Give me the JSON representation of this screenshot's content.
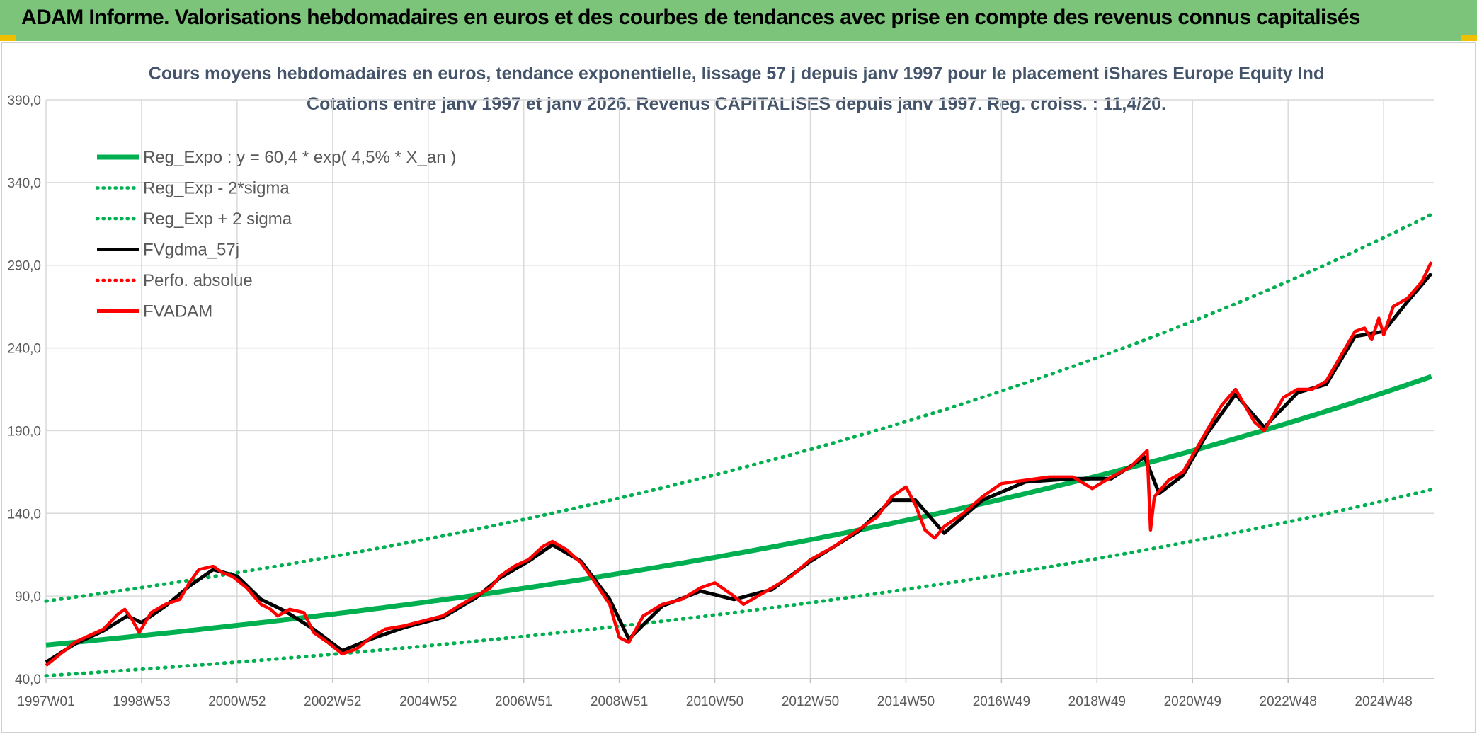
{
  "header": {
    "title": "ADAM Informe. Valorisations hebdomadaires en euros et des courbes de tendances avec prise en compte des revenus connus capitalisés"
  },
  "chart_data": {
    "type": "line",
    "title_line1": "Cours moyens hebdomadaires en euros, tendance exponentielle, lissage 57 j depuis janv 1997 pour le placement iShares Europe Equity Ind",
    "title_line2": "Cotations entre janv 1997 et janv 2026. Revenus CAPITALISES depuis janv 1997. Reg. croiss. : 11,4/20.",
    "xlabel": "",
    "ylabel": "",
    "ylim": [
      40,
      390
    ],
    "xlim": [
      1997.0,
      2026.05
    ],
    "y_ticks": [
      "390,0",
      "340,0",
      "290,0",
      "240,0",
      "190,0",
      "140,0",
      "90,0",
      "40,0"
    ],
    "y_tick_values": [
      390,
      340,
      290,
      240,
      190,
      140,
      90,
      40
    ],
    "x_ticks": [
      "1997W01",
      "1998W53",
      "2000W52",
      "2002W52",
      "2004W52",
      "2006W51",
      "2008W51",
      "2010W50",
      "2012W50",
      "2014W50",
      "2016W49",
      "2018W49",
      "2020W49",
      "2022W48",
      "2024W48"
    ],
    "x_tick_values": [
      1997.0,
      1999.0,
      2001.0,
      2003.0,
      2005.0,
      2007.0,
      2009.0,
      2011.0,
      2013.0,
      2015.0,
      2017.0,
      2019.0,
      2021.0,
      2023.0,
      2025.0
    ],
    "grid": true,
    "legend_position": "top-left",
    "legend": [
      {
        "label": "Reg_Expo : y = 60,4 * exp( 4,5% *  X_an )",
        "color": "#00b050",
        "style": "solid-thick"
      },
      {
        "label": "Reg_Exp - 2*sigma",
        "color": "#00b050",
        "style": "dotted"
      },
      {
        "label": "Reg_Exp + 2 sigma",
        "color": "#00b050",
        "style": "dotted"
      },
      {
        "label": "FVgdma_57j",
        "color": "#000000",
        "style": "solid"
      },
      {
        "label": "Perfo. absolue",
        "color": "#ff0000",
        "style": "dotted"
      },
      {
        "label": "FVADAM",
        "color": "#ff0000",
        "style": "solid"
      }
    ],
    "regression": {
      "a": 60.4,
      "b": 0.045,
      "lower_factor": 0.693,
      "upper_factor": 1.44
    },
    "series": [
      {
        "name": "FVADAM",
        "color": "#ff0000",
        "x": [
          1997.0,
          1997.3,
          1997.6,
          1997.9,
          1998.2,
          1998.5,
          1998.65,
          1998.8,
          1998.95,
          1999.2,
          1999.5,
          1999.8,
          2000.0,
          2000.2,
          2000.5,
          2000.7,
          2000.9,
          2001.2,
          2001.5,
          2001.7,
          2001.85,
          2002.1,
          2002.4,
          2002.6,
          2002.9,
          2003.2,
          2003.5,
          2003.8,
          2004.1,
          2004.5,
          2004.9,
          2005.3,
          2005.7,
          2006.0,
          2006.3,
          2006.5,
          2006.8,
          2007.1,
          2007.4,
          2007.6,
          2007.9,
          2008.2,
          2008.5,
          2008.8,
          2009.0,
          2009.2,
          2009.5,
          2009.9,
          2010.3,
          2010.7,
          2011.0,
          2011.4,
          2011.6,
          2011.9,
          2012.2,
          2012.6,
          2013.0,
          2013.5,
          2014.0,
          2014.4,
          2014.7,
          2015.0,
          2015.2,
          2015.4,
          2015.6,
          2015.8,
          2016.2,
          2016.6,
          2017.0,
          2017.5,
          2018.0,
          2018.5,
          2018.9,
          2019.3,
          2019.7,
          2020.05,
          2020.12,
          2020.2,
          2020.5,
          2020.8,
          2021.0,
          2021.3,
          2021.6,
          2021.9,
          2022.1,
          2022.3,
          2022.5,
          2022.7,
          2022.9,
          2023.2,
          2023.5,
          2023.8,
          2024.1,
          2024.4,
          2024.6,
          2024.75,
          2024.9,
          2025.0,
          2025.2,
          2025.5,
          2025.8,
          2026.0
        ],
        "values": [
          48,
          55,
          62,
          66,
          70,
          79,
          82,
          76,
          68,
          80,
          85,
          88,
          98,
          106,
          108,
          104,
          102,
          95,
          85,
          82,
          78,
          82,
          80,
          68,
          62,
          55,
          58,
          65,
          70,
          72,
          75,
          78,
          85,
          90,
          95,
          102,
          108,
          112,
          120,
          123,
          118,
          110,
          98,
          85,
          65,
          62,
          78,
          85,
          88,
          95,
          98,
          90,
          85,
          90,
          95,
          102,
          112,
          120,
          130,
          138,
          150,
          156,
          145,
          130,
          125,
          132,
          140,
          150,
          158,
          160,
          162,
          162,
          155,
          162,
          168,
          178,
          130,
          150,
          160,
          165,
          175,
          190,
          205,
          215,
          205,
          195,
          190,
          200,
          210,
          215,
          215,
          220,
          235,
          250,
          252,
          245,
          258,
          248,
          265,
          270,
          280,
          292
        ]
      },
      {
        "name": "FVgdma_57j",
        "color": "#000000",
        "x": [
          1997.0,
          1997.6,
          1998.2,
          1998.7,
          1999.0,
          1999.5,
          2000.0,
          2000.5,
          2001.0,
          2001.5,
          2002.0,
          2002.6,
          2003.2,
          2003.8,
          2004.5,
          2005.3,
          2006.0,
          2006.5,
          2007.1,
          2007.6,
          2008.2,
          2008.8,
          2009.2,
          2009.9,
          2010.7,
          2011.4,
          2012.2,
          2013.0,
          2014.0,
          2014.7,
          2015.2,
          2015.8,
          2016.6,
          2017.5,
          2018.5,
          2019.3,
          2020.0,
          2020.3,
          2020.8,
          2021.3,
          2021.9,
          2022.5,
          2023.2,
          2023.8,
          2024.4,
          2025.0,
          2025.5,
          2026.0
        ],
        "values": [
          50,
          61,
          69,
          78,
          74,
          84,
          96,
          106,
          102,
          88,
          81,
          70,
          57,
          64,
          71,
          77,
          89,
          101,
          111,
          121,
          111,
          88,
          64,
          84,
          93,
          88,
          94,
          111,
          129,
          148,
          148,
          128,
          148,
          159,
          161,
          161,
          174,
          152,
          163,
          188,
          212,
          192,
          213,
          218,
          247,
          250,
          268,
          285
        ]
      }
    ]
  }
}
